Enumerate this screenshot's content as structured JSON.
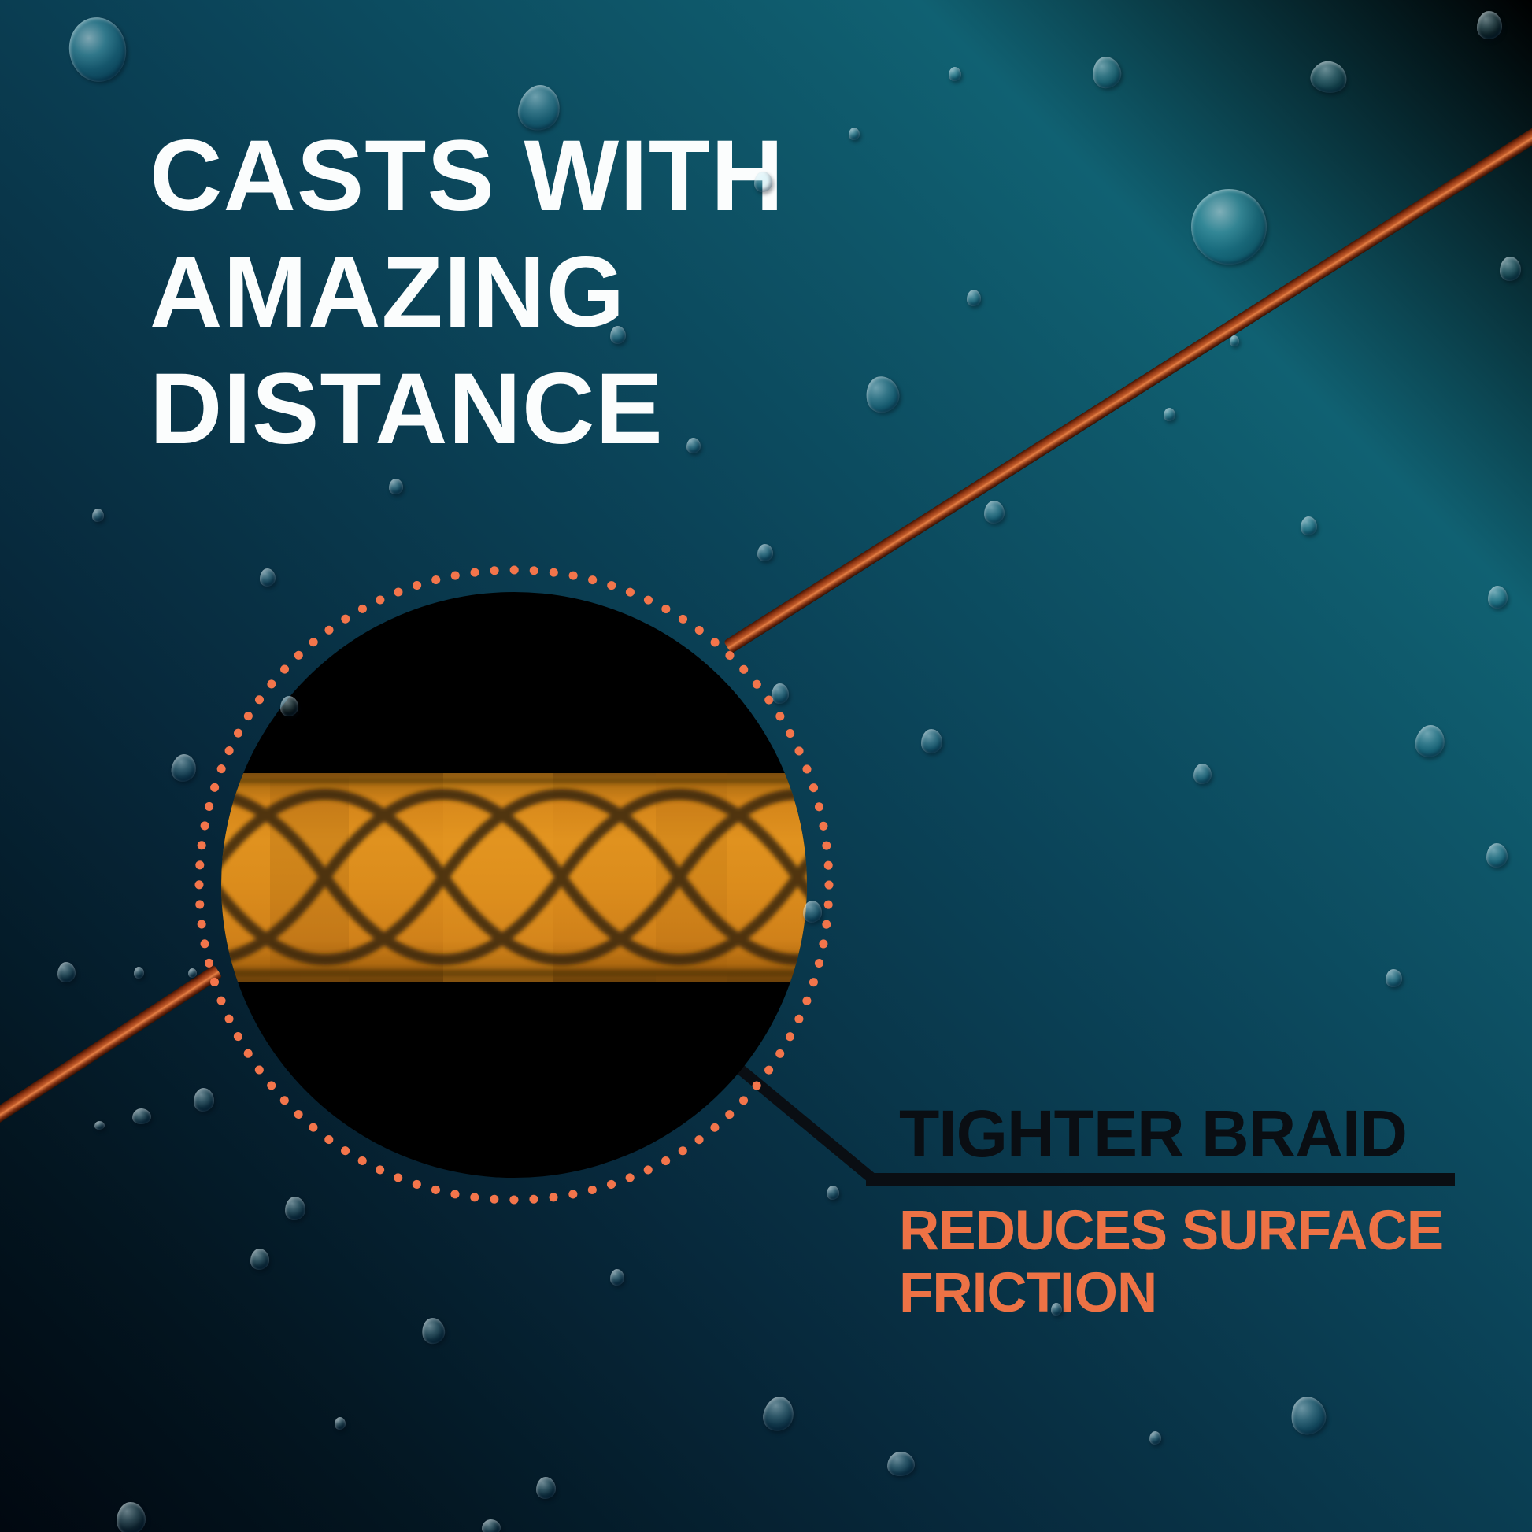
{
  "headline": {
    "line1": "CASTS WITH",
    "line2": "AMAZING",
    "line3": "DISTANCE"
  },
  "callout": {
    "title": "TIGHTER BRAID",
    "subtitle_line1": "REDUCES SURFACE",
    "subtitle_line2": "FRICTION"
  },
  "colors": {
    "background_top_right": "#1A8796",
    "background_bottom_left": "#010810",
    "headline_text": "#FBFDFD",
    "callout_title_text": "#0A0E13",
    "callout_subtitle_text": "#ED7245",
    "dot_ring": "#F3754B",
    "braid_orange": "#DB8C1C",
    "braid_strand": "#32200A",
    "fishing_line": "#C05A2A",
    "callout_line": "#0A0E13",
    "magnifier_fill": "#000000"
  },
  "decor": {
    "droplets": [
      [
        88,
        22,
        72,
        82,
        -10
      ],
      [
        330,
        722,
        20,
        23,
        0
      ],
      [
        659,
        108,
        52,
        58,
        12
      ],
      [
        980,
        868,
        22,
        26,
        0
      ],
      [
        1078,
        162,
        14,
        16,
        0
      ],
      [
        1205,
        85,
        16,
        18,
        0
      ],
      [
        1388,
        72,
        36,
        40,
        -8
      ],
      [
        1665,
        78,
        46,
        40,
        15
      ],
      [
        1876,
        14,
        32,
        36,
        0
      ],
      [
        1513,
        240,
        96,
        96,
        0
      ],
      [
        958,
        218,
        23,
        26,
        0
      ],
      [
        1228,
        368,
        18,
        21,
        0
      ],
      [
        1100,
        478,
        42,
        46,
        -12
      ],
      [
        775,
        414,
        20,
        23,
        0
      ],
      [
        494,
        608,
        18,
        20,
        0
      ],
      [
        117,
        646,
        15,
        17,
        0
      ],
      [
        356,
        884,
        23,
        26,
        0
      ],
      [
        218,
        958,
        31,
        35,
        8
      ],
      [
        73,
        1222,
        23,
        26,
        0
      ],
      [
        170,
        1228,
        13,
        15,
        0
      ],
      [
        239,
        1230,
        11,
        12,
        0
      ],
      [
        1020,
        1144,
        24,
        28,
        0
      ],
      [
        362,
        1520,
        26,
        30,
        0
      ],
      [
        318,
        1586,
        24,
        27,
        0
      ],
      [
        536,
        1674,
        29,
        33,
        -8
      ],
      [
        775,
        1612,
        18,
        21,
        0
      ],
      [
        970,
        1774,
        38,
        44,
        12
      ],
      [
        681,
        1876,
        25,
        28,
        0
      ],
      [
        1127,
        1844,
        35,
        31,
        0
      ],
      [
        1460,
        1818,
        15,
        17,
        0
      ],
      [
        1640,
        1774,
        44,
        48,
        -10
      ],
      [
        148,
        1908,
        37,
        41,
        0
      ],
      [
        425,
        1800,
        14,
        16,
        0
      ],
      [
        168,
        1408,
        24,
        20,
        0
      ],
      [
        246,
        1382,
        26,
        30,
        0
      ],
      [
        120,
        1424,
        13,
        11,
        0
      ],
      [
        1170,
        926,
        27,
        31,
        0
      ],
      [
        1516,
        970,
        23,
        26,
        0
      ],
      [
        1798,
        921,
        37,
        41,
        10
      ],
      [
        1890,
        744,
        25,
        29,
        0
      ],
      [
        1652,
        656,
        21,
        24,
        0
      ],
      [
        1478,
        518,
        15,
        17,
        0
      ],
      [
        1562,
        426,
        12,
        14,
        0
      ],
      [
        1250,
        636,
        26,
        29,
        0
      ],
      [
        872,
        556,
        18,
        20,
        0
      ],
      [
        962,
        691,
        20,
        22,
        0
      ],
      [
        1905,
        326,
        27,
        31,
        0
      ],
      [
        1888,
        1071,
        27,
        31,
        0
      ],
      [
        1760,
        1231,
        21,
        23,
        0
      ],
      [
        612,
        1930,
        24,
        20,
        0
      ],
      [
        1050,
        1506,
        16,
        18,
        0
      ],
      [
        1335,
        1655,
        14,
        16,
        0
      ]
    ]
  }
}
